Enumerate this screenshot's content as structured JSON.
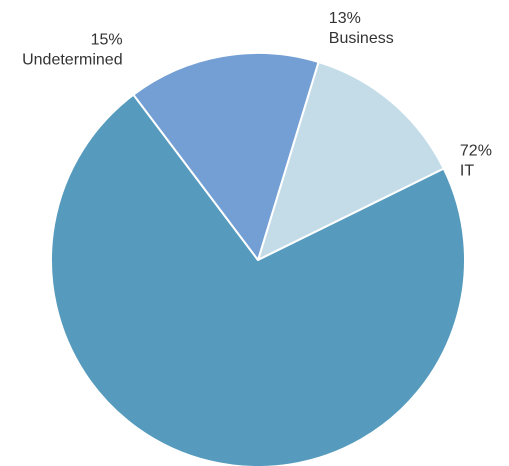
{
  "chart_data": {
    "type": "pie",
    "title": "",
    "slices": [
      {
        "label": "Business",
        "value": 13,
        "value_label": "13%",
        "color": "#c3dce8"
      },
      {
        "label": "IT",
        "value": 72,
        "value_label": "72%",
        "color": "#569bbd"
      },
      {
        "label": "Undetermined",
        "value": 15,
        "value_label": "15%",
        "color": "#739fd4"
      }
    ],
    "start_angle_deg": 17,
    "direction": "clockwise",
    "legend": "none"
  }
}
